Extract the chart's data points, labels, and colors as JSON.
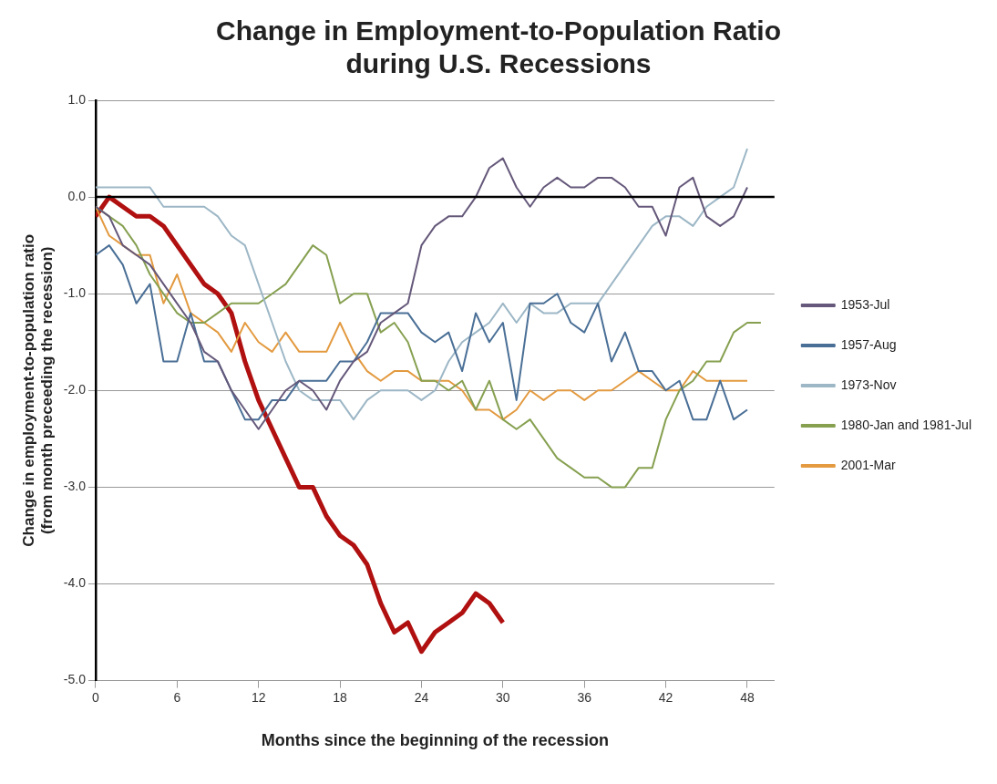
{
  "chart_data": {
    "type": "line",
    "title": "Change in Employment-to-Population Ratio\nduring U.S. Recessions",
    "xlabel": "Months since the beginning of the recession",
    "ylabel": "Change in employment-to-population ratio\n(from month preceeding the recession)",
    "xlim": [
      0,
      50
    ],
    "xticks": [
      0,
      6,
      12,
      18,
      24,
      30,
      36,
      42,
      48
    ],
    "ylim": [
      -5,
      1
    ],
    "yticks": [
      {
        "value": -5,
        "label": "-5.0"
      },
      {
        "value": -4,
        "label": "-4.0"
      },
      {
        "value": -3,
        "label": "-3.0"
      },
      {
        "value": -2,
        "label": "-2.0"
      },
      {
        "value": -1,
        "label": "-1.0"
      },
      {
        "value": 0,
        "label": "0.0"
      },
      {
        "value": 1,
        "label": "1.0"
      }
    ],
    "grid": "y",
    "legend": "right",
    "marker": "none",
    "line_style": "solid",
    "ref_lines": [
      {
        "axis": "y",
        "value": 0,
        "color": "#000000"
      }
    ],
    "series": [
      {
        "name": "1953-Jul",
        "color": "#65587a",
        "x": [
          0,
          1,
          2,
          3,
          4,
          5,
          6,
          7,
          8,
          9,
          10,
          11,
          12,
          13,
          14,
          15,
          16,
          17,
          18,
          19,
          20,
          21,
          22,
          23,
          24,
          25,
          26,
          27,
          28,
          29,
          30,
          31,
          32,
          33,
          34,
          35,
          36,
          37,
          38,
          39,
          40,
          41,
          42,
          43,
          44,
          45,
          46,
          47,
          48
        ],
        "values": [
          -0.1,
          -0.2,
          -0.5,
          -0.6,
          -0.7,
          -0.9,
          -1.1,
          -1.3,
          -1.6,
          -1.7,
          -2.0,
          -2.2,
          -2.4,
          -2.2,
          -2.0,
          -1.9,
          -2.0,
          -2.2,
          -1.9,
          -1.7,
          -1.6,
          -1.3,
          -1.2,
          -1.1,
          -0.5,
          -0.3,
          -0.2,
          -0.2,
          0.0,
          0.3,
          0.4,
          0.1,
          -0.1,
          0.1,
          0.2,
          0.1,
          0.1,
          0.2,
          0.2,
          0.1,
          -0.1,
          -0.1,
          -0.4,
          0.1,
          0.2,
          -0.2,
          -0.3,
          -0.2,
          0.1
        ]
      },
      {
        "name": "1957-Aug",
        "color": "#4a6f96",
        "x": [
          0,
          1,
          2,
          3,
          4,
          5,
          6,
          7,
          8,
          9,
          10,
          11,
          12,
          13,
          14,
          15,
          16,
          17,
          18,
          19,
          20,
          21,
          22,
          23,
          24,
          25,
          26,
          27,
          28,
          29,
          30,
          31,
          32,
          33,
          34,
          35,
          36,
          37,
          38,
          39,
          40,
          41,
          42,
          43,
          44,
          45,
          46,
          47,
          48
        ],
        "values": [
          -0.6,
          -0.5,
          -0.7,
          -1.1,
          -0.9,
          -1.7,
          -1.7,
          -1.2,
          -1.7,
          -1.7,
          -2.0,
          -2.3,
          -2.3,
          -2.1,
          -2.1,
          -1.9,
          -1.9,
          -1.9,
          -1.7,
          -1.7,
          -1.5,
          -1.2,
          -1.2,
          -1.2,
          -1.4,
          -1.5,
          -1.4,
          -1.8,
          -1.2,
          -1.5,
          -1.3,
          -2.1,
          -1.1,
          -1.1,
          -1.0,
          -1.3,
          -1.4,
          -1.1,
          -1.7,
          -1.4,
          -1.8,
          -1.8,
          -2.0,
          -1.9,
          -2.3,
          -2.3,
          -1.9,
          -2.3,
          -2.2
        ]
      },
      {
        "name": "1973-Nov",
        "color": "#9db7c6",
        "x": [
          0,
          1,
          2,
          3,
          4,
          5,
          6,
          7,
          8,
          9,
          10,
          11,
          12,
          13,
          14,
          15,
          16,
          17,
          18,
          19,
          20,
          21,
          22,
          23,
          24,
          25,
          26,
          27,
          28,
          29,
          30,
          31,
          32,
          33,
          34,
          35,
          36,
          37,
          38,
          39,
          40,
          41,
          42,
          43,
          44,
          45,
          46,
          47,
          48
        ],
        "values": [
          0.1,
          0.1,
          0.1,
          0.1,
          0.1,
          -0.1,
          -0.1,
          -0.1,
          -0.1,
          -0.2,
          -0.4,
          -0.5,
          -0.9,
          -1.3,
          -1.7,
          -2.0,
          -2.1,
          -2.1,
          -2.1,
          -2.3,
          -2.1,
          -2.0,
          -2.0,
          -2.0,
          -2.1,
          -2.0,
          -1.7,
          -1.5,
          -1.4,
          -1.3,
          -1.1,
          -1.3,
          -1.1,
          -1.2,
          -1.2,
          -1.1,
          -1.1,
          -1.1,
          -0.9,
          -0.7,
          -0.5,
          -0.3,
          -0.2,
          -0.2,
          -0.3,
          -0.1,
          0.0,
          0.1,
          0.5
        ]
      },
      {
        "name": "1980-Jan and 1981-Jul",
        "color": "#86a050",
        "x": [
          0,
          1,
          2,
          3,
          4,
          5,
          6,
          7,
          8,
          9,
          10,
          11,
          12,
          13,
          14,
          15,
          16,
          17,
          18,
          19,
          20,
          21,
          22,
          23,
          24,
          25,
          26,
          27,
          28,
          29,
          30,
          31,
          32,
          33,
          34,
          35,
          36,
          37,
          38,
          39,
          40,
          41,
          42,
          43,
          44,
          45,
          46,
          47,
          48,
          49
        ],
        "values": [
          -0.1,
          -0.2,
          -0.3,
          -0.5,
          -0.8,
          -1.0,
          -1.2,
          -1.3,
          -1.3,
          -1.2,
          -1.1,
          -1.1,
          -1.1,
          -1.0,
          -0.9,
          -0.7,
          -0.5,
          -0.6,
          -1.1,
          -1.0,
          -1.0,
          -1.4,
          -1.3,
          -1.5,
          -1.9,
          -1.9,
          -2.0,
          -1.9,
          -2.2,
          -1.9,
          -2.3,
          -2.4,
          -2.3,
          -2.5,
          -2.7,
          -2.8,
          -2.9,
          -2.9,
          -3.0,
          -3.0,
          -2.8,
          -2.8,
          -2.3,
          -2.0,
          -1.9,
          -1.7,
          -1.7,
          -1.4,
          -1.3,
          -1.3
        ]
      },
      {
        "name": "2001-Mar",
        "color": "#e39a40",
        "x": [
          0,
          1,
          2,
          3,
          4,
          5,
          6,
          7,
          8,
          9,
          10,
          11,
          12,
          13,
          14,
          15,
          16,
          17,
          18,
          19,
          20,
          21,
          22,
          23,
          24,
          25,
          26,
          27,
          28,
          29,
          30,
          31,
          32,
          33,
          34,
          35,
          36,
          37,
          38,
          39,
          40,
          41,
          42,
          43,
          44,
          45,
          46,
          47,
          48
        ],
        "values": [
          -0.1,
          -0.4,
          -0.5,
          -0.6,
          -0.6,
          -1.1,
          -0.8,
          -1.2,
          -1.3,
          -1.4,
          -1.6,
          -1.3,
          -1.5,
          -1.6,
          -1.4,
          -1.6,
          -1.6,
          -1.6,
          -1.3,
          -1.6,
          -1.8,
          -1.9,
          -1.8,
          -1.8,
          -1.9,
          -1.9,
          -1.9,
          -2.0,
          -2.2,
          -2.2,
          -2.3,
          -2.2,
          -2.0,
          -2.1,
          -2.0,
          -2.0,
          -2.1,
          -2.0,
          -2.0,
          -1.9,
          -1.8,
          -1.9,
          -2.0,
          -2.0,
          -1.8,
          -1.9,
          -1.9,
          -1.9,
          -1.9
        ]
      },
      {
        "color": "#b01010",
        "x": [
          0,
          1,
          2,
          3,
          4,
          5,
          6,
          7,
          8,
          9,
          10,
          11,
          12,
          13,
          14,
          15,
          16,
          17,
          18,
          19,
          20,
          21,
          22,
          23,
          24,
          25,
          26,
          27,
          28,
          29,
          30
        ],
        "values": [
          -0.2,
          0.0,
          -0.1,
          -0.2,
          -0.2,
          -0.3,
          -0.5,
          -0.7,
          -0.9,
          -1.0,
          -1.2,
          -1.7,
          -2.1,
          -2.4,
          -2.7,
          -3.0,
          -3.0,
          -3.3,
          -3.5,
          -3.6,
          -3.8,
          -4.2,
          -4.5,
          -4.4,
          -4.7,
          -4.5,
          -4.4,
          -4.3,
          -4.1,
          -4.2,
          -4.4
        ]
      }
    ]
  }
}
